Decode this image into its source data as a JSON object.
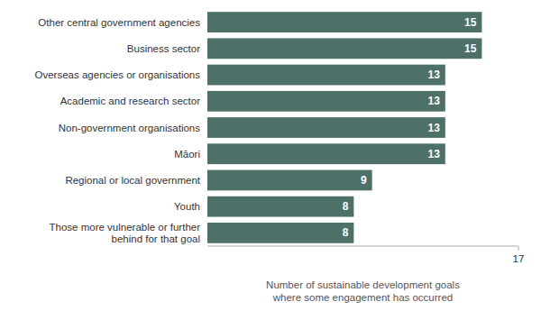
{
  "chart_data": {
    "type": "bar",
    "orientation": "horizontal",
    "categories": [
      "Those more vulnerable or further\nbehind for that goal",
      "Youth",
      "Regional or local government",
      "Māori",
      "Non-government organisations",
      "Academic and research sector",
      "Overseas agencies or organisations",
      "Business sector",
      "Other central government agencies"
    ],
    "values": [
      8,
      8,
      9,
      13,
      13,
      13,
      13,
      15,
      15
    ],
    "color": "#4d7068",
    "xlabel": "Number of sustainable development goals\nwhere some engagement has occurred",
    "xlim": [
      0,
      17
    ],
    "xticks": [
      17
    ],
    "data_labels": true,
    "grid": false
  }
}
